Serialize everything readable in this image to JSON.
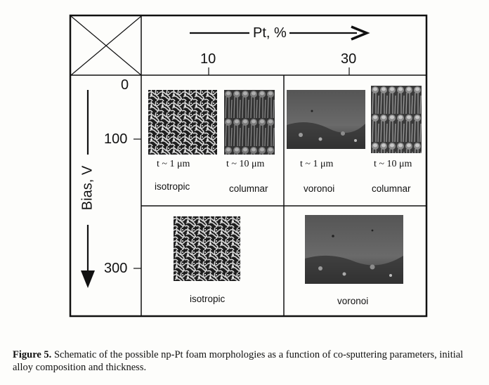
{
  "axes": {
    "pt_label": "Pt, %",
    "pt_ticks": [
      "10",
      "30"
    ],
    "bias_label": "Bias, V",
    "bias_ticks": [
      "0",
      "100",
      "300"
    ]
  },
  "cells": {
    "r1_c1_a": {
      "thickness": "t ~ 1 μm",
      "label": "isotropic"
    },
    "r1_c1_b": {
      "thickness": "t ~ 10 μm",
      "label": "columnar"
    },
    "r1_c2_a": {
      "thickness": "t ~ 1 μm",
      "label": "voronoi"
    },
    "r1_c2_b": {
      "thickness": "t ~ 10 μm",
      "label": "columnar"
    },
    "r2_c1": {
      "label": "isotropic"
    },
    "r2_c2": {
      "label": "voronoi"
    }
  },
  "caption": {
    "label": "Figure 5.",
    "text": "Schematic of the possible np-Pt foam morphologies as a function of co-sputtering parameters, initial alloy composition and thickness."
  }
}
